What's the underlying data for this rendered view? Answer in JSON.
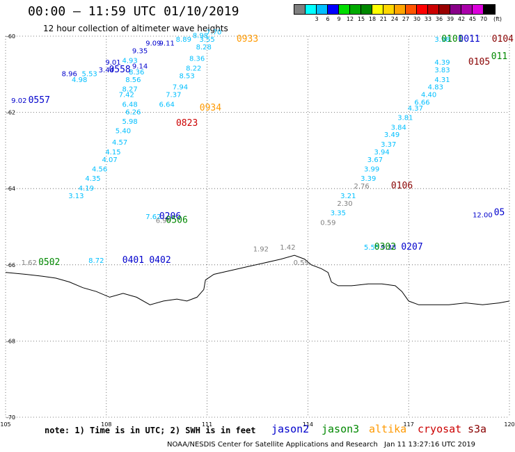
{
  "title": "00:00 – 11:59 UTC 01/10/2019",
  "subtitle": "12 hour collection of altimeter wave heights",
  "legend": {
    "unit": "(ft)",
    "colors": [
      "#7f7f7f",
      "#00ffff",
      "#00bfff",
      "#0000ff",
      "#00dd00",
      "#00aa00",
      "#008800",
      "#ffff00",
      "#ffd700",
      "#ffa500",
      "#ff5500",
      "#ff0000",
      "#cc0000",
      "#990000",
      "#880088",
      "#aa00aa",
      "#dd00dd",
      "#000000"
    ],
    "labels": [
      "3",
      "6",
      "9",
      "12",
      "15",
      "18",
      "21",
      "24",
      "27",
      "30",
      "33",
      "36",
      "39",
      "42",
      "45",
      "70"
    ]
  },
  "axes": {
    "x_labels": [
      "105",
      "108",
      "111",
      "114",
      "117",
      "120"
    ],
    "y_labels": [
      "-60",
      "-62",
      "-64",
      "-66",
      "-68",
      "-70"
    ]
  },
  "note": "note: 1) Time is in UTC; 2) SWH is in feet",
  "satellites": [
    {
      "name": "jason2",
      "color": "#0000cc"
    },
    {
      "name": "jason3",
      "color": "#008800"
    },
    {
      "name": "altika",
      "color": "#ff9900"
    },
    {
      "name": "cryosat",
      "color": "#cc0000"
    },
    {
      "name": "s3a",
      "color": "#880000"
    }
  ],
  "credit": "NOAA/NESDIS Center for Satellite Applications and Research",
  "timestamp": "Jan 11 13:27:16 UTC 2019",
  "chart_data": {
    "type": "scatter",
    "xlabel": "",
    "ylabel": "",
    "xlim": [
      105,
      120
    ],
    "ylim": [
      -70,
      -60
    ],
    "grid": true,
    "pass_times": [
      {
        "label": "0557",
        "color": "#0000cc",
        "lon": 106.0,
        "lat": -61.75
      },
      {
        "label": "0558",
        "color": "#0000cc",
        "lon": 108.4,
        "lat": -60.95
      },
      {
        "label": "0933",
        "color": "#ff9900",
        "lon": 112.2,
        "lat": -60.15
      },
      {
        "label": "0934",
        "color": "#ff9900",
        "lon": 111.1,
        "lat": -61.95
      },
      {
        "label": "0823",
        "color": "#cc0000",
        "lon": 110.4,
        "lat": -62.35
      },
      {
        "label": "0206",
        "color": "#0000cc",
        "lon": 109.9,
        "lat": -64.8
      },
      {
        "label": "0506",
        "color": "#008800",
        "lon": 110.1,
        "lat": -64.9
      },
      {
        "label": "0502",
        "color": "#008800",
        "lon": 106.3,
        "lat": -66.0
      },
      {
        "label": "0401",
        "color": "#0000cc",
        "lon": 108.8,
        "lat": -65.95
      },
      {
        "label": "0402",
        "color": "#0000cc",
        "lon": 109.6,
        "lat": -65.95
      },
      {
        "label": "0106",
        "color": "#880000",
        "lon": 116.8,
        "lat": -64.0
      },
      {
        "label": "0302",
        "color": "#008800",
        "lon": 116.3,
        "lat": -65.6
      },
      {
        "label": "0207",
        "color": "#0000cc",
        "lon": 117.1,
        "lat": -65.6
      },
      {
        "label": "0101",
        "color": "#008800",
        "lon": 118.3,
        "lat": -60.15
      },
      {
        "label": "0011",
        "color": "#0000cc",
        "lon": 118.8,
        "lat": -60.15
      },
      {
        "label": "0104",
        "color": "#880000",
        "lon": 119.8,
        "lat": -60.15
      },
      {
        "label": "0105",
        "color": "#880000",
        "lon": 119.1,
        "lat": -60.75
      },
      {
        "label": "011",
        "color": "#008800",
        "lon": 119.7,
        "lat": -60.6
      },
      {
        "label": "05",
        "color": "#0000cc",
        "lon": 119.7,
        "lat": -64.7
      }
    ],
    "swh_labels": [
      {
        "v": "9.02",
        "color": "#0000cc",
        "lon": 105.4,
        "lat": -61.75
      },
      {
        "v": "8.96",
        "color": "#0000cc",
        "lon": 106.9,
        "lat": -61.05
      },
      {
        "v": "4.98",
        "color": "#00bfff",
        "lon": 107.2,
        "lat": -61.2
      },
      {
        "v": "5.53",
        "color": "#00bfff",
        "lon": 107.5,
        "lat": -61.05
      },
      {
        "v": "3.44",
        "color": "#0000cc",
        "lon": 108.0,
        "lat": -60.95
      },
      {
        "v": "9.01",
        "color": "#0000cc",
        "lon": 108.2,
        "lat": -60.75
      },
      {
        "v": "4.93",
        "color": "#00bfff",
        "lon": 108.7,
        "lat": -60.7
      },
      {
        "v": "9.35",
        "color": "#0000cc",
        "lon": 109.0,
        "lat": -60.45
      },
      {
        "v": "9.09",
        "color": "#0000cc",
        "lon": 109.4,
        "lat": -60.25
      },
      {
        "v": "9.11",
        "color": "#0000cc",
        "lon": 109.8,
        "lat": -60.25
      },
      {
        "v": "8.89",
        "color": "#00bfff",
        "lon": 110.3,
        "lat": -60.15
      },
      {
        "v": "8.98",
        "color": "#00bfff",
        "lon": 110.8,
        "lat": -60.05
      },
      {
        "v": "7.70",
        "color": "#00bfff",
        "lon": 111.2,
        "lat": -59.95
      },
      {
        "v": "3.55",
        "color": "#00bfff",
        "lon": 111.0,
        "lat": -60.15
      },
      {
        "v": "8.28",
        "color": "#00bfff",
        "lon": 110.9,
        "lat": -60.35
      },
      {
        "v": "8.36",
        "color": "#00bfff",
        "lon": 110.7,
        "lat": -60.65
      },
      {
        "v": "8.22",
        "color": "#00bfff",
        "lon": 110.6,
        "lat": -60.9
      },
      {
        "v": "8.53",
        "color": "#00bfff",
        "lon": 110.4,
        "lat": -61.1
      },
      {
        "v": "7.94",
        "color": "#00bfff",
        "lon": 110.2,
        "lat": -61.4
      },
      {
        "v": "7.37",
        "color": "#00bfff",
        "lon": 110.0,
        "lat": -61.6
      },
      {
        "v": "6.64",
        "color": "#00bfff",
        "lon": 109.8,
        "lat": -61.85
      },
      {
        "v": "9.14",
        "color": "#0000cc",
        "lon": 109.0,
        "lat": -60.85
      },
      {
        "v": "8.36",
        "color": "#00bfff",
        "lon": 108.9,
        "lat": -61.0
      },
      {
        "v": "8.56",
        "color": "#00bfff",
        "lon": 108.8,
        "lat": -61.2
      },
      {
        "v": "8.27",
        "color": "#00bfff",
        "lon": 108.7,
        "lat": -61.45
      },
      {
        "v": "7.42",
        "color": "#00bfff",
        "lon": 108.6,
        "lat": -61.6
      },
      {
        "v": "6.48",
        "color": "#00bfff",
        "lon": 108.7,
        "lat": -61.85
      },
      {
        "v": "6.26",
        "color": "#00bfff",
        "lon": 108.8,
        "lat": -62.05
      },
      {
        "v": "5.98",
        "color": "#00bfff",
        "lon": 108.7,
        "lat": -62.3
      },
      {
        "v": "5.40",
        "color": "#00bfff",
        "lon": 108.5,
        "lat": -62.55
      },
      {
        "v": "4.57",
        "color": "#00bfff",
        "lon": 108.4,
        "lat": -62.85
      },
      {
        "v": "4.15",
        "color": "#00bfff",
        "lon": 108.2,
        "lat": -63.1
      },
      {
        "v": "4.07",
        "color": "#00bfff",
        "lon": 108.1,
        "lat": -63.3
      },
      {
        "v": "4.56",
        "color": "#00bfff",
        "lon": 107.8,
        "lat": -63.55
      },
      {
        "v": "4.35",
        "color": "#00bfff",
        "lon": 107.6,
        "lat": -63.8
      },
      {
        "v": "4.19",
        "color": "#00bfff",
        "lon": 107.4,
        "lat": -64.05
      },
      {
        "v": "3.13",
        "color": "#00bfff",
        "lon": 107.1,
        "lat": -64.25
      },
      {
        "v": "7.62",
        "color": "#00bfff",
        "lon": 109.4,
        "lat": -64.8
      },
      {
        "v": "6.99",
        "color": "#7f7f7f",
        "lon": 109.7,
        "lat": -64.9
      },
      {
        "v": "1.62",
        "color": "#7f7f7f",
        "lon": 105.7,
        "lat": -66.0
      },
      {
        "v": "8.72",
        "color": "#00bfff",
        "lon": 107.7,
        "lat": -65.95
      },
      {
        "v": "1.92",
        "color": "#7f7f7f",
        "lon": 112.6,
        "lat": -65.65
      },
      {
        "v": "1.42",
        "color": "#7f7f7f",
        "lon": 113.4,
        "lat": -65.6
      },
      {
        "v": "0.59",
        "color": "#7f7f7f",
        "lon": 113.8,
        "lat": -66.0
      },
      {
        "v": "0.59",
        "color": "#7f7f7f",
        "lon": 114.6,
        "lat": -64.95
      },
      {
        "v": "3.35",
        "color": "#00bfff",
        "lon": 114.9,
        "lat": -64.7
      },
      {
        "v": "2.30",
        "color": "#7f7f7f",
        "lon": 115.1,
        "lat": -64.45
      },
      {
        "v": "3.21",
        "color": "#00bfff",
        "lon": 115.2,
        "lat": -64.25
      },
      {
        "v": "2.76",
        "color": "#7f7f7f",
        "lon": 115.6,
        "lat": -64.0
      },
      {
        "v": "3.39",
        "color": "#00bfff",
        "lon": 115.8,
        "lat": -63.8
      },
      {
        "v": "3.99",
        "color": "#00bfff",
        "lon": 115.9,
        "lat": -63.55
      },
      {
        "v": "3.67",
        "color": "#00bfff",
        "lon": 116.0,
        "lat": -63.3
      },
      {
        "v": "3.94",
        "color": "#00bfff",
        "lon": 116.2,
        "lat": -63.1
      },
      {
        "v": "3.37",
        "color": "#00bfff",
        "lon": 116.4,
        "lat": -62.9
      },
      {
        "v": "3.49",
        "color": "#00bfff",
        "lon": 116.5,
        "lat": -62.65
      },
      {
        "v": "3.84",
        "color": "#00bfff",
        "lon": 116.7,
        "lat": -62.45
      },
      {
        "v": "3.81",
        "color": "#00bfff",
        "lon": 116.9,
        "lat": -62.2
      },
      {
        "v": "4.37",
        "color": "#00bfff",
        "lon": 117.2,
        "lat": -61.95
      },
      {
        "v": "6.66",
        "color": "#00bfff",
        "lon": 117.4,
        "lat": -61.8
      },
      {
        "v": "4.40",
        "color": "#00bfff",
        "lon": 117.6,
        "lat": -61.6
      },
      {
        "v": "4.83",
        "color": "#00bfff",
        "lon": 117.8,
        "lat": -61.4
      },
      {
        "v": "4.31",
        "color": "#00bfff",
        "lon": 118.0,
        "lat": -61.2
      },
      {
        "v": "3.83",
        "color": "#00bfff",
        "lon": 118.0,
        "lat": -60.95
      },
      {
        "v": "4.39",
        "color": "#00bfff",
        "lon": 118.0,
        "lat": -60.75
      },
      {
        "v": "3.98",
        "color": "#00bfff",
        "lon": 118.0,
        "lat": -60.15
      },
      {
        "v": "12.00",
        "color": "#0000cc",
        "lon": 119.2,
        "lat": -64.75
      },
      {
        "v": "5.55",
        "color": "#00bfff",
        "lon": 115.9,
        "lat": -65.6
      },
      {
        "v": "9.38",
        "color": "#0000cc",
        "lon": 116.4,
        "lat": -65.6
      }
    ],
    "coastline": [
      [
        105,
        -66.2
      ],
      [
        105.6,
        -66.25
      ],
      [
        106.1,
        -66.3
      ],
      [
        106.5,
        -66.35
      ],
      [
        106.9,
        -66.45
      ],
      [
        107.3,
        -66.6
      ],
      [
        107.7,
        -66.7
      ],
      [
        108.1,
        -66.85
      ],
      [
        108.5,
        -66.75
      ],
      [
        108.9,
        -66.85
      ],
      [
        109.3,
        -67.05
      ],
      [
        109.7,
        -66.95
      ],
      [
        110.1,
        -66.9
      ],
      [
        110.4,
        -66.95
      ],
      [
        110.7,
        -66.85
      ],
      [
        110.9,
        -66.65
      ],
      [
        110.95,
        -66.4
      ],
      [
        111.2,
        -66.25
      ],
      [
        111.7,
        -66.15
      ],
      [
        112.2,
        -66.05
      ],
      [
        112.7,
        -65.95
      ],
      [
        113.2,
        -65.85
      ],
      [
        113.6,
        -65.75
      ],
      [
        113.9,
        -65.85
      ],
      [
        114.1,
        -66.0
      ],
      [
        114.4,
        -66.1
      ],
      [
        114.6,
        -66.2
      ],
      [
        114.7,
        -66.45
      ],
      [
        114.9,
        -66.55
      ],
      [
        115.3,
        -66.55
      ],
      [
        115.8,
        -66.5
      ],
      [
        116.2,
        -66.5
      ],
      [
        116.6,
        -66.55
      ],
      [
        116.8,
        -66.7
      ],
      [
        117.0,
        -66.95
      ],
      [
        117.3,
        -67.05
      ],
      [
        117.7,
        -67.05
      ],
      [
        118.2,
        -67.05
      ],
      [
        118.7,
        -67.0
      ],
      [
        119.2,
        -67.05
      ],
      [
        119.7,
        -67.0
      ],
      [
        120,
        -66.95
      ]
    ]
  }
}
